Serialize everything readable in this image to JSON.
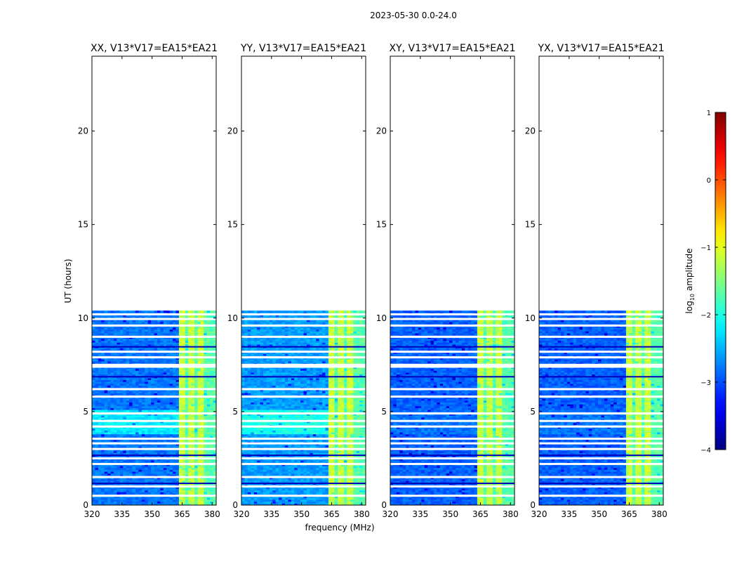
{
  "chart_data": {
    "type": "heatmap",
    "suptitle": "2023-05-30 0.0-24.0",
    "xlabel": "frequency (MHz)",
    "ylabel": "UT (hours)",
    "xlim": [
      320,
      382
    ],
    "ylim": [
      0,
      24
    ],
    "xticks": [
      320,
      335,
      350,
      365,
      380
    ],
    "yticks": [
      0,
      5,
      10,
      15,
      20
    ],
    "data_time_range": [
      0,
      10.4
    ],
    "panels": [
      {
        "title": "XX, V13*V17=EA15*EA21",
        "base_log_amp": -2.8,
        "broadband_log_amp": -2.2
      },
      {
        "title": "YY, V13*V17=EA15*EA21",
        "base_log_amp": -2.6,
        "broadband_log_amp": -2.0
      },
      {
        "title": "XY, V13*V17=EA15*EA21",
        "base_log_amp": -2.9,
        "broadband_log_amp": -2.8
      },
      {
        "title": "YX, V13*V17=EA15*EA21",
        "base_log_amp": -2.9,
        "broadband_log_amp": -2.8
      }
    ],
    "rfi_band_MHz": [
      364,
      380.5
    ],
    "strong_channels_MHz": [
      365,
      366,
      369.5,
      370.5,
      374,
      375
    ],
    "broadband_time_range": [
      3.8,
      5.0
    ],
    "gap_rows_hours": [
      0.5,
      1.0,
      1.5,
      2.2,
      2.5,
      3.0,
      3.3,
      3.55,
      4.2,
      4.5,
      4.9,
      5.8,
      6.2,
      7.4,
      7.5,
      7.9,
      8.2,
      9.0,
      9.6,
      9.95,
      10.2
    ],
    "colorbar": {
      "label": "log$_{10}$ amplitude",
      "label_prefix": "log",
      "label_sub": "10",
      "label_suffix": " amplitude",
      "vmin": -4,
      "vmax": 1,
      "ticks": [
        -4,
        -3,
        -2,
        -1,
        0,
        1
      ],
      "colormap": "jet"
    }
  }
}
